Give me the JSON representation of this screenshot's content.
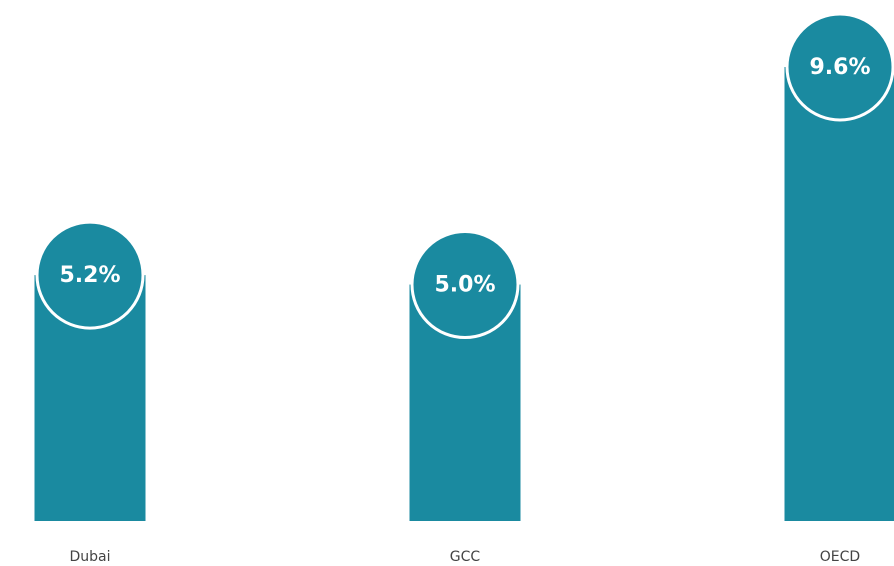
{
  "chart_data": {
    "type": "bar",
    "categories": [
      "Dubai",
      "GCC",
      "OECD"
    ],
    "values": [
      5.2,
      5.0,
      9.6
    ],
    "value_labels": [
      "5.2%",
      "5.0%",
      "9.6%"
    ],
    "color": "#1a8aa0"
  }
}
